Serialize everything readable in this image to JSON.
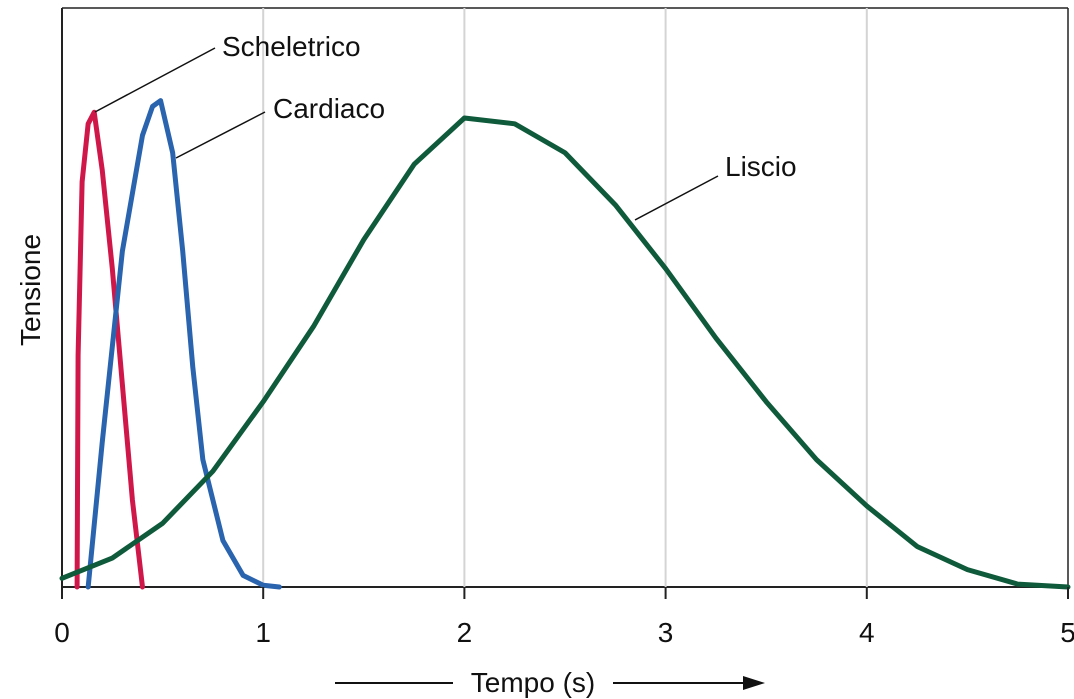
{
  "chart_data": {
    "type": "line",
    "x_label": "Tempo (s)",
    "y_label": "Tensione",
    "xlim": [
      0,
      5
    ],
    "xticks": [
      0,
      1,
      2,
      3,
      4,
      5
    ],
    "ylim": [
      0,
      100
    ],
    "grid": true,
    "series": [
      {
        "name": "Scheletrico",
        "color": "#d0174a",
        "x": [
          0.075,
          0.08,
          0.1,
          0.13,
          0.16,
          0.2,
          0.25,
          0.3,
          0.35,
          0.4
        ],
        "values": [
          0,
          40,
          70,
          80,
          82,
          72,
          55,
          35,
          15,
          0
        ]
      },
      {
        "name": "Cardiaco",
        "color": "#2a63ae",
        "x": [
          0.13,
          0.2,
          0.3,
          0.4,
          0.45,
          0.49,
          0.55,
          0.6,
          0.65,
          0.7,
          0.8,
          0.9,
          1.0,
          1.08
        ],
        "values": [
          0,
          25,
          58,
          78,
          83,
          84,
          75,
          58,
          38,
          22,
          8,
          2,
          0.3,
          0
        ]
      },
      {
        "name": "Liscio",
        "color": "#0e5a3a",
        "x": [
          0,
          0.25,
          0.5,
          0.75,
          1,
          1.25,
          1.5,
          1.75,
          2,
          2.25,
          2.5,
          2.75,
          3,
          3.25,
          3.5,
          3.75,
          4,
          4.25,
          4.5,
          4.75,
          5
        ],
        "values": [
          1.5,
          5,
          11,
          20,
          32,
          45,
          60,
          73,
          81,
          80,
          75,
          66,
          55,
          43,
          32,
          22,
          14,
          7,
          3,
          0.5,
          0
        ]
      }
    ]
  }
}
